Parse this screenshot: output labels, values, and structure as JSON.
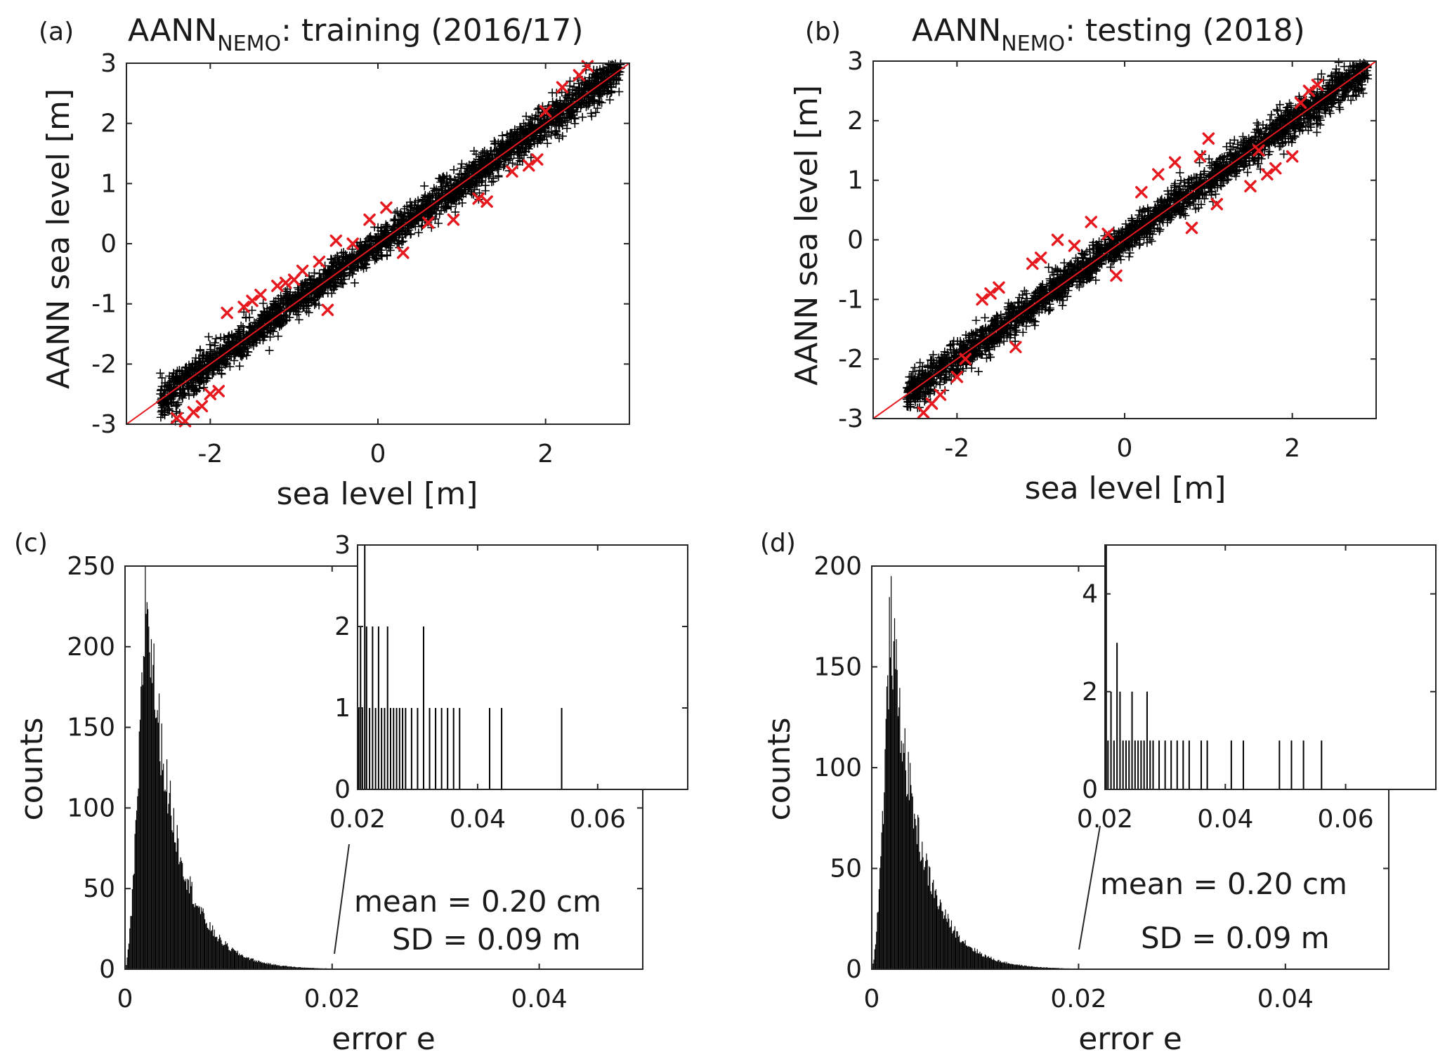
{
  "figure": {
    "panel_labels": [
      "(a)",
      "(b)",
      "(c)",
      "(d)"
    ]
  },
  "chart_data": [
    {
      "panel": "(a)",
      "type": "scatter",
      "title": "AANN",
      "title_subscript": "NEMO",
      "title_rest": ": training (2016/17)",
      "xlabel": "sea level [m]",
      "ylabel": "AANN sea level [m]",
      "xlim": [
        -3,
        3
      ],
      "ylim": [
        -3,
        3
      ],
      "xticks": [
        "-2",
        "0",
        "2"
      ],
      "yticks": [
        "-3",
        "-2",
        "-1",
        "0",
        "1",
        "2",
        "3"
      ],
      "grid": false,
      "bulk_marker_color": "#000000",
      "outlier_marker_color": "#e6191f",
      "reference_line_color": "#e6191f",
      "series": [
        {
          "marker": "+",
          "color": "#000000",
          "points_summary": "dense band of points along y = x from (-2.6, -3.0) to (2.9, 3.0), band width about ±0.3 m"
        },
        {
          "marker": "x",
          "color": "#e6191f",
          "x": [
            -2.4,
            -2.3,
            -2.2,
            -2.1,
            -2.0,
            -1.9,
            -1.8,
            -1.6,
            -1.5,
            -1.4,
            -1.2,
            -1.1,
            -1.0,
            -0.9,
            -0.7,
            -0.6,
            -0.5,
            -0.3,
            -0.1,
            0.1,
            0.3,
            0.6,
            0.9,
            1.2,
            1.3,
            1.6,
            1.8,
            1.9,
            2.0,
            2.2,
            2.4,
            2.5
          ],
          "y": [
            -2.9,
            -2.95,
            -2.8,
            -2.7,
            -2.5,
            -2.45,
            -1.15,
            -1.05,
            -0.95,
            -0.85,
            -0.7,
            -0.65,
            -0.6,
            -0.45,
            -0.3,
            -1.1,
            0.05,
            0.0,
            0.4,
            0.6,
            -0.15,
            0.35,
            0.4,
            0.75,
            0.7,
            1.2,
            1.3,
            1.4,
            2.2,
            2.6,
            2.8,
            2.95
          ]
        }
      ],
      "reference_line": {
        "x": [
          -3,
          3
        ],
        "y": [
          -3,
          3
        ]
      }
    },
    {
      "panel": "(b)",
      "type": "scatter",
      "title": "AANN",
      "title_subscript": "NEMO",
      "title_rest": ": testing (2018)",
      "xlabel": "sea level [m]",
      "ylabel": "AANN sea level [m]",
      "xlim": [
        -3,
        3
      ],
      "ylim": [
        -3,
        3
      ],
      "xticks": [
        "-2",
        "0",
        "2"
      ],
      "yticks": [
        "-3",
        "-2",
        "-1",
        "0",
        "1",
        "2",
        "3"
      ],
      "grid": false,
      "series": [
        {
          "marker": "+",
          "color": "#000000",
          "points_summary": "dense band of points along y = x from (-2.6, -3.0) to (2.9, 3.0), band width about ±0.3 m"
        },
        {
          "marker": "x",
          "color": "#e6191f",
          "x": [
            -2.4,
            -2.3,
            -2.2,
            -2.0,
            -1.9,
            -1.7,
            -1.6,
            -1.5,
            -1.3,
            -1.1,
            -1.0,
            -0.8,
            -0.6,
            -0.4,
            -0.2,
            -0.1,
            0.2,
            0.4,
            0.6,
            0.8,
            0.9,
            1.0,
            1.1,
            1.5,
            1.6,
            1.7,
            1.8,
            2.0,
            2.1,
            2.2,
            2.3
          ],
          "y": [
            -2.9,
            -2.75,
            -2.6,
            -2.3,
            -2.0,
            -1.0,
            -0.9,
            -0.8,
            -1.8,
            -0.4,
            -0.3,
            0.0,
            -0.1,
            0.3,
            0.1,
            -0.6,
            0.8,
            1.1,
            1.3,
            0.2,
            1.4,
            1.7,
            0.6,
            0.9,
            1.5,
            1.1,
            1.2,
            1.4,
            2.3,
            2.5,
            2.6
          ]
        }
      ],
      "reference_line": {
        "x": [
          -3,
          3
        ],
        "y": [
          -3,
          3
        ]
      }
    },
    {
      "panel": "(c)",
      "type": "bar",
      "xlabel": "error e",
      "ylabel": "counts",
      "xlim": [
        0,
        0.05
      ],
      "ylim": [
        0,
        250
      ],
      "xticks": [
        "0",
        "0.02",
        "0.04"
      ],
      "yticks": [
        "0",
        "50",
        "100",
        "150",
        "200",
        "250"
      ],
      "annotations": [
        "mean = 0.20 cm",
        "SD = 0.09 m"
      ],
      "histogram_shape": {
        "peak_x": 0.002,
        "peak_count": 238,
        "decay_per_0_01": 0.18
      },
      "inset": {
        "xlim": [
          0.02,
          0.075
        ],
        "ylim": [
          0,
          3
        ],
        "xticks": [
          "0.02",
          "0.04",
          "0.06"
        ],
        "yticks": [
          "0",
          "1",
          "2",
          "3"
        ],
        "bars": {
          "x": [
            0.0202,
            0.0205,
            0.0208,
            0.0212,
            0.0215,
            0.022,
            0.0225,
            0.023,
            0.0235,
            0.024,
            0.0245,
            0.025,
            0.0255,
            0.026,
            0.0265,
            0.027,
            0.0275,
            0.028,
            0.029,
            0.03,
            0.031,
            0.032,
            0.033,
            0.034,
            0.035,
            0.036,
            0.037,
            0.042,
            0.044,
            0.054
          ],
          "counts": [
            1,
            2,
            1,
            3,
            2,
            1,
            2,
            1,
            2,
            1,
            1,
            2,
            1,
            1,
            1,
            1,
            1,
            1,
            1,
            1,
            2,
            1,
            1,
            1,
            1,
            1,
            1,
            1,
            1,
            1
          ]
        }
      }
    },
    {
      "panel": "(d)",
      "type": "bar",
      "xlabel": "error e",
      "ylabel": "counts",
      "xlim": [
        0,
        0.05
      ],
      "ylim": [
        0,
        200
      ],
      "xticks": [
        "0",
        "0.02",
        "0.04"
      ],
      "yticks": [
        "0",
        "50",
        "100",
        "150",
        "200"
      ],
      "annotations": [
        "mean = 0.20 cm",
        "SD = 0.09 m"
      ],
      "histogram_shape": {
        "peak_x": 0.0018,
        "peak_count": 176,
        "decay_per_0_01": 0.18
      },
      "inset": {
        "xlim": [
          0.02,
          0.075
        ],
        "ylim": [
          0,
          5
        ],
        "xticks": [
          "0.02",
          "0.04",
          "0.06"
        ],
        "yticks": [
          "0",
          "2",
          "4"
        ],
        "bars": {
          "x": [
            0.0202,
            0.0205,
            0.021,
            0.0215,
            0.022,
            0.0225,
            0.023,
            0.0235,
            0.024,
            0.0245,
            0.025,
            0.0255,
            0.026,
            0.0265,
            0.027,
            0.0275,
            0.028,
            0.029,
            0.03,
            0.031,
            0.032,
            0.033,
            0.034,
            0.036,
            0.037,
            0.041,
            0.043,
            0.049,
            0.051,
            0.053,
            0.056
          ],
          "counts": [
            5,
            1,
            2,
            1,
            3,
            2,
            1,
            1,
            1,
            2,
            1,
            1,
            1,
            1,
            2,
            1,
            1,
            1,
            1,
            1,
            1,
            1,
            1,
            1,
            1,
            1,
            1,
            1,
            1,
            1,
            1
          ]
        }
      }
    }
  ]
}
